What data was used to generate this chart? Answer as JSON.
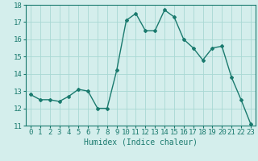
{
  "x": [
    0,
    1,
    2,
    3,
    4,
    5,
    6,
    7,
    8,
    9,
    10,
    11,
    12,
    13,
    14,
    15,
    16,
    17,
    18,
    19,
    20,
    21,
    22,
    23
  ],
  "y": [
    12.8,
    12.5,
    12.5,
    12.4,
    12.7,
    13.1,
    13.0,
    12.0,
    12.0,
    14.2,
    17.1,
    17.5,
    16.5,
    16.5,
    17.7,
    17.3,
    16.0,
    15.5,
    14.8,
    15.5,
    15.6,
    13.8,
    12.5,
    11.1
  ],
  "line_color": "#1a7a6e",
  "marker": "D",
  "marker_size": 2,
  "bg_color": "#d4eeec",
  "grid_color": "#a8d8d4",
  "xlabel": "Humidex (Indice chaleur)",
  "ylim": [
    11,
    18
  ],
  "xlim": [
    -0.5,
    23.5
  ],
  "yticks": [
    11,
    12,
    13,
    14,
    15,
    16,
    17,
    18
  ],
  "xticks": [
    0,
    1,
    2,
    3,
    4,
    5,
    6,
    7,
    8,
    9,
    10,
    11,
    12,
    13,
    14,
    15,
    16,
    17,
    18,
    19,
    20,
    21,
    22,
    23
  ],
  "xlabel_fontsize": 7,
  "tick_fontsize": 6.5
}
